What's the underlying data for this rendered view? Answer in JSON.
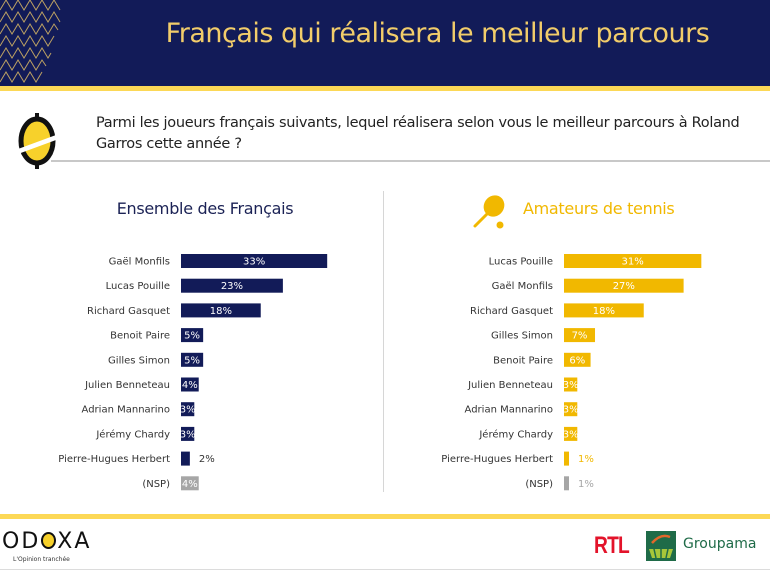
{
  "header": {
    "title": "Français qui réalisera le meilleur parcours"
  },
  "question": {
    "text": "Parmi les joueurs français suivants, lequel réalisera selon vous le meilleur parcours à Roland Garros cette année ?"
  },
  "colors": {
    "navy": "#121b58",
    "gold": "#f1b800",
    "stripe": "#fcd856",
    "nsp_gray": "#a6a6a6"
  },
  "chart_data": [
    {
      "type": "bar",
      "orientation": "horizontal",
      "title": "Ensemble des Français",
      "categories": [
        "Gaël Monfils",
        "Lucas Pouille",
        "Richard Gasquet",
        "Benoit Paire",
        "Gilles Simon",
        "Julien Benneteau",
        "Adrian Mannarino",
        "Jérémy Chardy",
        "Pierre-Hugues Herbert",
        "(NSP)"
      ],
      "values": [
        33,
        23,
        18,
        5,
        5,
        4,
        3,
        3,
        2,
        4
      ],
      "labels": [
        "33%",
        "23%",
        "18%",
        "5%",
        "5%",
        "4%",
        "3%",
        "3%",
        "2%",
        "4%"
      ],
      "unit": "%",
      "xlim": [
        0,
        35
      ],
      "grid": false,
      "legend": "none"
    },
    {
      "type": "bar",
      "orientation": "horizontal",
      "title": "Amateurs de tennis",
      "categories": [
        "Lucas Pouille",
        "Gaël Monfils",
        "Richard Gasquet",
        "Gilles Simon",
        "Benoit Paire",
        "Julien Benneteau",
        "Adrian Mannarino",
        "Jérémy Chardy",
        "Pierre-Hugues Herbert",
        "(NSP)"
      ],
      "values": [
        31,
        27,
        18,
        7,
        6,
        3,
        3,
        3,
        1,
        1
      ],
      "labels": [
        "31%",
        "27%",
        "18%",
        "7%",
        "6%",
        "3%",
        "3%",
        "3%",
        "1%",
        "1%"
      ],
      "unit": "%",
      "xlim": [
        0,
        35
      ],
      "grid": false,
      "legend": "none"
    }
  ],
  "footer": {
    "odoxa_logo": "ODOXA",
    "odoxa_tagline": "L'Opinion tranchée",
    "rtl_logo": "RTL",
    "groupama_name": "Groupama"
  }
}
